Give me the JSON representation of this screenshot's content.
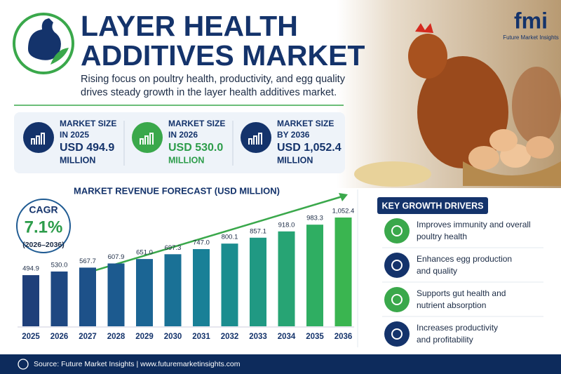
{
  "header": {
    "title_lines": [
      "LAYER HEALTH",
      "ADDITIVES MARKET"
    ],
    "subtitle_lines": [
      "Rising focus on poultry health, productivity, and egg quality",
      "drives steady growth in the layer health additives market."
    ],
    "logo": "fmi",
    "logo_caption": "Future Market Insights"
  },
  "stats": [
    {
      "label": [
        "MARKET SIZE",
        "IN 2025"
      ],
      "value": [
        "USD 494.9",
        "MILLION"
      ]
    },
    {
      "label": [
        "MARKET SIZE",
        "IN 2026"
      ],
      "value": [
        "USD 530.0",
        "MILLION"
      ]
    },
    {
      "label": [
        "MARKET SIZE",
        "BY 2036"
      ],
      "value": [
        "USD 1,052.4",
        "MILLION"
      ]
    }
  ],
  "cagr": {
    "label": "CAGR",
    "value": "7.1%",
    "period": "(2026–2036)"
  },
  "chart_data": {
    "type": "bar",
    "title": "MARKET REVENUE FORECAST (USD MILLION)",
    "categories": [
      "2025",
      "2026",
      "2027",
      "2028",
      "2029",
      "2030",
      "2031",
      "2032",
      "2033",
      "2034",
      "2035",
      "2036"
    ],
    "values": [
      494.9,
      530.0,
      567.7,
      607.9,
      651.0,
      697.3,
      747.0,
      800.1,
      857.1,
      918.0,
      983.3,
      1052.4
    ],
    "value_labels": [
      "494.9",
      "530.0",
      "567.7",
      "607.9",
      "651.0",
      "697.3",
      "747.0",
      "800.1",
      "857.1",
      "918.0",
      "983.3",
      "1,052.4"
    ],
    "colors": [
      "#1f3f7a",
      "#1e4882",
      "#1d5189",
      "#1c5a8f",
      "#1b6594",
      "#1a7196",
      "#198097",
      "#1b8d8f",
      "#209983",
      "#27a474",
      "#2fae62",
      "#3ab550"
    ]
  },
  "drivers": {
    "title": "KEY GROWTH DRIVERS",
    "items": [
      [
        "Improves immunity and overall",
        "poultry health"
      ],
      [
        "Enhances egg production",
        "and quality"
      ],
      [
        "Supports gut health and",
        "nutrient absorption"
      ],
      [
        "Increases productivity",
        "and profitability"
      ]
    ]
  },
  "footer": "Source: Future Market Insights | www.futuremarketinsights.com"
}
